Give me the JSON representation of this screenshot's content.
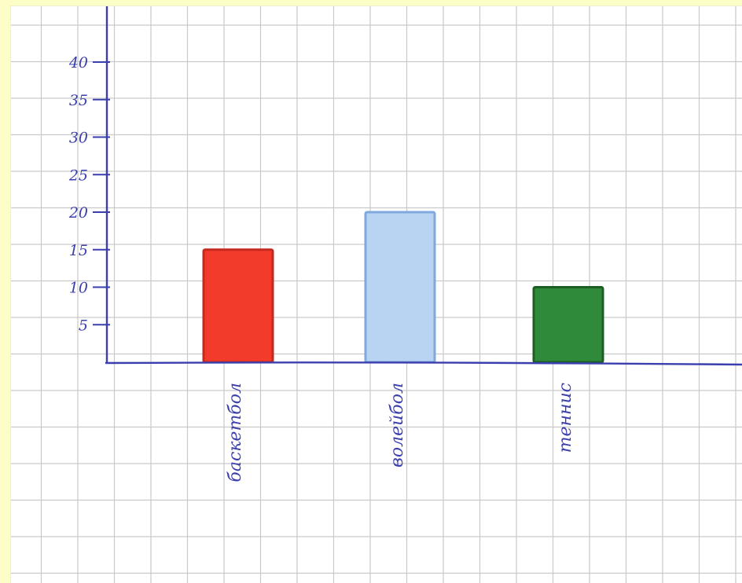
{
  "chart_data": {
    "type": "bar",
    "title": "",
    "xlabel": "",
    "ylabel": "",
    "categories": [
      "баскетбол",
      "волейбол",
      "теннис"
    ],
    "values": [
      15,
      20,
      10
    ],
    "ylim": [
      0,
      40
    ],
    "yticks": [
      5,
      10,
      15,
      20,
      25,
      30,
      35,
      40
    ],
    "ytick_labels": [
      "5",
      "10",
      "15",
      "20",
      "25",
      "30",
      "35",
      "40"
    ],
    "colors": [
      "#f23b2b",
      "#b8d4f2",
      "#2f8a3a"
    ],
    "grid": true,
    "legend": "none"
  },
  "colors": {
    "page_background": "#fdfdc8",
    "paper": "#ffffff",
    "grid": "#c9c9c9",
    "ink": "#3b3fae"
  }
}
